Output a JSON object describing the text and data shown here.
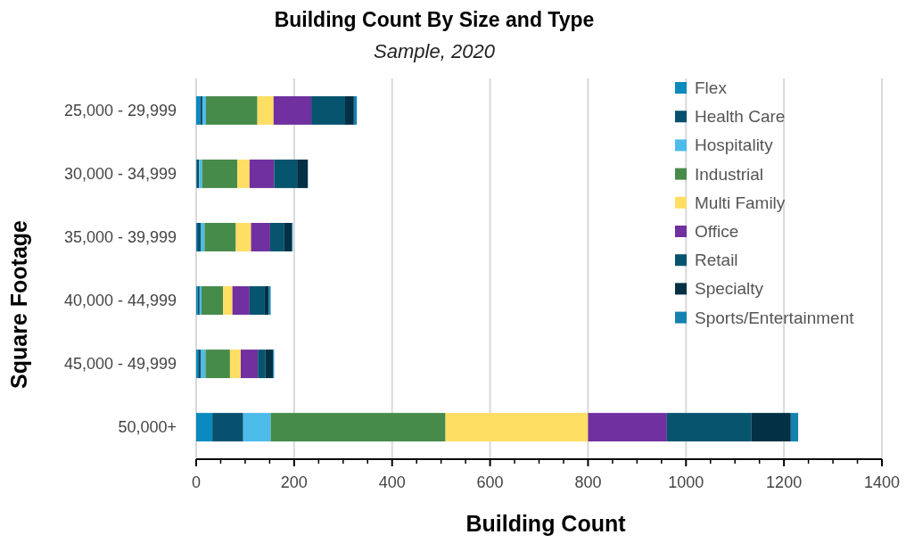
{
  "chart_data": {
    "type": "bar",
    "orientation": "horizontal",
    "stacked": true,
    "title": "Building Count By Size and Type",
    "subtitle": "Sample, 2020",
    "xlabel": "Building Count",
    "ylabel": "Square Footage",
    "categories": [
      "25,000 - 29,999",
      "30,000 - 34,999",
      "35,000 - 39,999",
      "40,000 - 44,999",
      "45,000 - 49,999",
      "50,000+"
    ],
    "series": [
      {
        "name": "Flex",
        "color": "#0a8abf",
        "values": [
          8,
          1,
          2,
          3,
          4,
          33
        ]
      },
      {
        "name": "Health Care",
        "color": "#07506e",
        "values": [
          5,
          5,
          8,
          4,
          6,
          63
        ]
      },
      {
        "name": "Hospitality",
        "color": "#4cbbea",
        "values": [
          7,
          6,
          7,
          4,
          9,
          56
        ]
      },
      {
        "name": "Industrial",
        "color": "#468b4a",
        "values": [
          105,
          72,
          64,
          44,
          50,
          357
        ]
      },
      {
        "name": "Multi Family",
        "color": "#ffde64",
        "values": [
          33,
          25,
          31,
          19,
          22,
          291
        ]
      },
      {
        "name": "Office",
        "color": "#7030a0",
        "values": [
          77,
          50,
          39,
          35,
          35,
          161
        ]
      },
      {
        "name": "Retail",
        "color": "#07546f",
        "values": [
          69,
          47,
          29,
          31,
          15,
          172
        ]
      },
      {
        "name": "Specialty",
        "color": "#033045",
        "values": [
          18,
          22,
          15,
          8,
          16,
          81
        ]
      },
      {
        "name": "Sports/Entertainment",
        "color": "#1481b0",
        "values": [
          6,
          0,
          2,
          4,
          2,
          15
        ]
      }
    ],
    "xlim": [
      0,
      1400
    ],
    "xticks": [
      0,
      200,
      400,
      600,
      800,
      1000,
      1200,
      1400
    ],
    "grid": "x",
    "legend": "top right"
  }
}
